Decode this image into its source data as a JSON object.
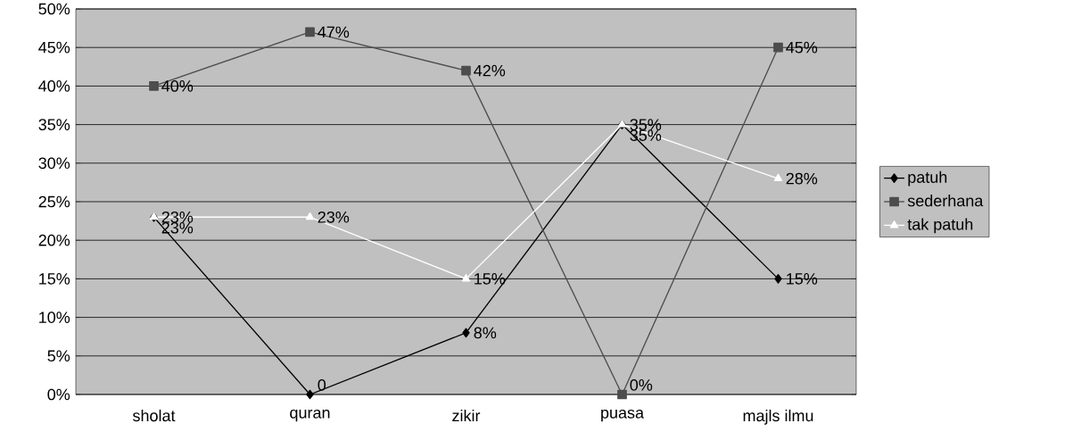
{
  "chart_data": {
    "type": "line",
    "categories": [
      "sholat",
      "quran",
      "zikir",
      "puasa",
      "majls ilmu"
    ],
    "series": [
      {
        "name": "patuh",
        "color": "#000000",
        "marker": "diamond",
        "values": [
          23,
          0,
          8,
          35,
          15
        ],
        "value_labels": [
          "23%",
          "0",
          "8%",
          "35%",
          "15%"
        ]
      },
      {
        "name": "sederhana",
        "color": "#4d4d4d",
        "marker": "square",
        "values": [
          40,
          47,
          42,
          0,
          45
        ],
        "value_labels": [
          "40%",
          "47%",
          "42%",
          "0%",
          "45%"
        ]
      },
      {
        "name": "tak patuh",
        "color": "#ffffff",
        "marker": "triangle",
        "values": [
          23,
          23,
          15,
          35,
          28
        ],
        "value_labels": [
          "23%",
          "23%",
          "15%",
          "35%",
          "28%"
        ]
      }
    ],
    "ylim": [
      0,
      50
    ],
    "yticks": [
      {
        "value": 0,
        "label": "0%"
      },
      {
        "value": 5,
        "label": "5%"
      },
      {
        "value": 10,
        "label": "10%"
      },
      {
        "value": 15,
        "label": "15%"
      },
      {
        "value": 20,
        "label": "20%"
      },
      {
        "value": 25,
        "label": "25%"
      },
      {
        "value": 30,
        "label": "30%"
      },
      {
        "value": 35,
        "label": "35%"
      },
      {
        "value": 40,
        "label": "40%"
      },
      {
        "value": 45,
        "label": "45%"
      },
      {
        "value": 50,
        "label": "50%"
      }
    ],
    "grid": "y",
    "legend": "right"
  }
}
